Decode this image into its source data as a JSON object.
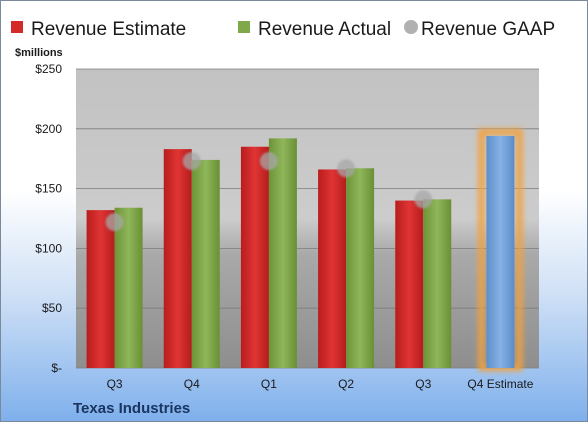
{
  "chart_data": {
    "type": "bar",
    "company": "Texas Industries",
    "unit_label": "$millions",
    "categories": [
      "Q3",
      "Q4",
      "Q1",
      "Q2",
      "Q3",
      "Q4 Estimate"
    ],
    "series": [
      {
        "name": "Revenue Estimate",
        "type": "bar",
        "color": "#d42a2a",
        "values": [
          132,
          183,
          185,
          166,
          140,
          null
        ]
      },
      {
        "name": "Revenue Actual",
        "type": "bar",
        "color": "#7fa84a",
        "values": [
          134,
          174,
          192,
          167,
          141,
          null
        ]
      },
      {
        "name": "Revenue GAAP",
        "type": "scatter",
        "color": "#a8a8a8",
        "values": [
          122,
          173,
          173,
          167,
          141,
          null
        ]
      }
    ],
    "forecast": {
      "category": "Q4 Estimate",
      "value": 194,
      "color": "#6f9fd6",
      "glow_color": "#f2a13c"
    },
    "y_ticks": [
      {
        "value": 0,
        "label": "$-"
      },
      {
        "value": 50,
        "label": "$50"
      },
      {
        "value": 100,
        "label": "$100"
      },
      {
        "value": 150,
        "label": "$150"
      },
      {
        "value": 200,
        "label": "$200"
      },
      {
        "value": 250,
        "label": "$250"
      }
    ],
    "ylim": [
      0,
      250
    ],
    "grid": true,
    "legend_position": "top"
  }
}
